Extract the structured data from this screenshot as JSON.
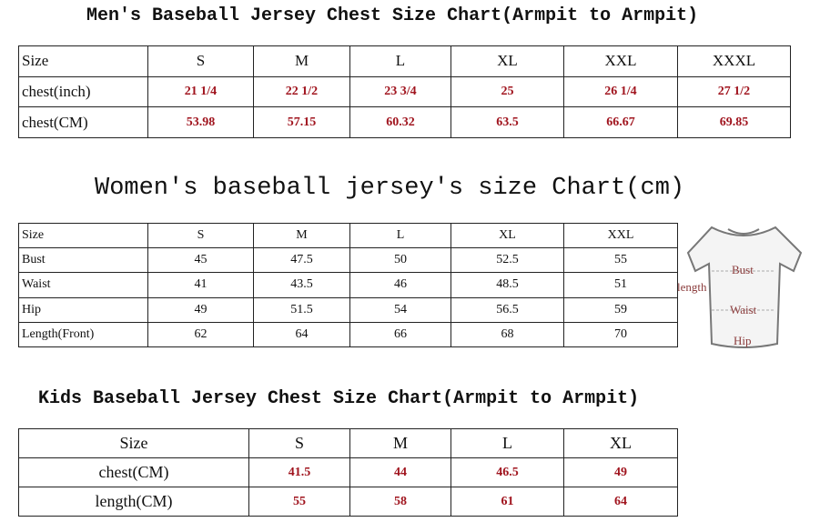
{
  "tables": [
    {
      "title": "Men's Baseball Jersey Chest Size Chart(Armpit to Armpit)",
      "header": [
        "Size",
        "S",
        "M",
        "L",
        "XL",
        "XXL",
        "XXXL"
      ],
      "rows": [
        [
          "chest(inch)",
          "21 1/4",
          "22 1/2",
          "23 3/4",
          "25",
          "26 1/4",
          "27 1/2"
        ],
        [
          "chest(CM)",
          "53.98",
          "57.15",
          "60.32",
          "63.5",
          "66.67",
          "69.85"
        ]
      ]
    },
    {
      "title": "Women's baseball jersey's size Chart(cm)",
      "header": [
        "Size",
        "S",
        "M",
        "L",
        "XL",
        "XXL"
      ],
      "rows": [
        [
          "Bust",
          "45",
          "47.5",
          "50",
          "52.5",
          "55"
        ],
        [
          "Waist",
          "41",
          "43.5",
          "46",
          "48.5",
          "51"
        ],
        [
          "Hip",
          "49",
          "51.5",
          "54",
          "56.5",
          "59"
        ],
        [
          "Length(Front)",
          "62",
          "64",
          "66",
          "68",
          "70"
        ]
      ]
    },
    {
      "title": "Kids Baseball Jersey Chest Size Chart(Armpit to Armpit)",
      "header": [
        "Size",
        "S",
        "M",
        "L",
        "XL"
      ],
      "rows": [
        [
          "chest(CM)",
          "41.5",
          "44",
          "46.5",
          "49"
        ],
        [
          "length(CM)",
          "55",
          "58",
          "61",
          "64"
        ]
      ]
    }
  ],
  "diagram": {
    "bust": "Bust",
    "waist": "Waist",
    "hip": "Hip",
    "length": "length"
  }
}
